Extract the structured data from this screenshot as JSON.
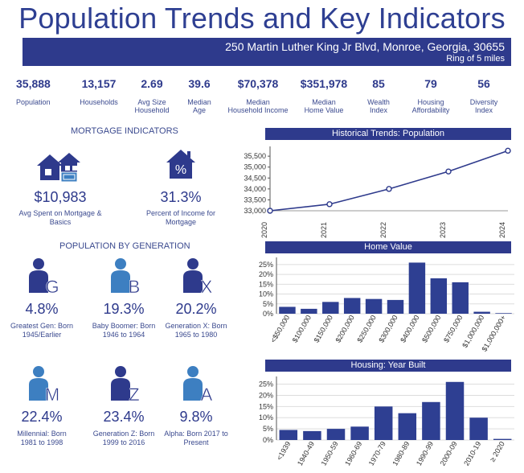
{
  "title": "Population Trends and Key Indicators",
  "banner": {
    "address": "250 Martin Luther King Jr Blvd, Monroe, Georgia, 30655",
    "ring": "Ring of 5 miles"
  },
  "kpis": [
    {
      "value": "35,888",
      "label1": "Population",
      "label2": ""
    },
    {
      "value": "13,157",
      "label1": "Households",
      "label2": ""
    },
    {
      "value": "2.69",
      "label1": "Avg Size",
      "label2": "Household"
    },
    {
      "value": "39.6",
      "label1": "Median",
      "label2": "Age"
    },
    {
      "value": "$70,378",
      "label1": "Median",
      "label2": "Household Income"
    },
    {
      "value": "$351,978",
      "label1": "Median",
      "label2": "Home Value"
    },
    {
      "value": "85",
      "label1": "Wealth",
      "label2": "Index"
    },
    {
      "value": "79",
      "label1": "Housing",
      "label2": "Affordability"
    },
    {
      "value": "56",
      "label1": "Diversity",
      "label2": "Index"
    }
  ],
  "mortgage": {
    "heading": "MORTGAGE INDICATORS",
    "spent_value": "$10,983",
    "spent_label1": "Avg Spent on Mortgage &",
    "spent_label2": "Basics",
    "pct_value": "31.3%",
    "pct_label1": "Percent of Income for",
    "pct_label2": "Mortgage",
    "pct_icon_glyph": "%"
  },
  "generation": {
    "heading": "POPULATION BY GENERATION",
    "items": [
      {
        "letter": "G",
        "value": "4.8%",
        "label1": "Greatest Gen: Born",
        "label2": "1945/Earlier",
        "color": "#2e3a8c"
      },
      {
        "letter": "B",
        "value": "19.3%",
        "label1": "Baby Boomer: Born",
        "label2": "1946 to 1964",
        "color": "#3d7fc1"
      },
      {
        "letter": "X",
        "value": "20.2%",
        "label1": "Generation X: Born",
        "label2": "1965 to 1980",
        "color": "#2e3a8c"
      },
      {
        "letter": "M",
        "value": "22.4%",
        "label1": "Millennial: Born",
        "label2": "1981 to 1998",
        "color": "#3d7fc1"
      },
      {
        "letter": "Z",
        "value": "23.4%",
        "label1": "Generation Z: Born",
        "label2": "1999 to 2016",
        "color": "#2e3a8c"
      },
      {
        "letter": "A",
        "value": "9.8%",
        "label1": "Alpha: Born 2017 to",
        "label2": "Present",
        "color": "#3d7fc1"
      }
    ]
  },
  "colors": {
    "navy": "#2e3a8c",
    "blue": "#3d7fc1",
    "bar": "#2e3f92"
  },
  "chart_data": [
    {
      "type": "line",
      "title": "Historical Trends: Population",
      "x": [
        "2020",
        "2021",
        "2022",
        "2023",
        "2024"
      ],
      "values": [
        33000,
        33300,
        34000,
        34800,
        35750
      ],
      "ylim": [
        33000,
        35500
      ],
      "yticks": [
        "33,000",
        "33,500",
        "34,000",
        "34,500",
        "35,000",
        "35,500"
      ],
      "ytick_values": [
        33000,
        33500,
        34000,
        34500,
        35000,
        35500
      ]
    },
    {
      "type": "bar",
      "title": "Home Value",
      "categories": [
        "<$50,000",
        "$100,000",
        "$150,000",
        "$200,000",
        "$250,000",
        "$300,000",
        "$400,000",
        "$500,000",
        "$750,000",
        "$1,000,000",
        "$1,000,000+"
      ],
      "values": [
        3.5,
        2.5,
        6.0,
        8.0,
        7.5,
        7.0,
        26.0,
        18.0,
        16.0,
        1.0,
        0.3
      ],
      "yticks": [
        "0%",
        "5%",
        "10%",
        "15%",
        "20%",
        "25%"
      ],
      "ytick_values": [
        0,
        5,
        10,
        15,
        20,
        25
      ],
      "ylim": [
        0,
        27
      ]
    },
    {
      "type": "bar",
      "title": "Housing: Year Built",
      "categories": [
        "<1939",
        "1940-49",
        "1950-59",
        "1960-69",
        "1970-79",
        "1980-89",
        "1990-99",
        "2000-09",
        "2010-19",
        "≥ 2020"
      ],
      "values": [
        4.5,
        4.0,
        5.0,
        6.0,
        15.0,
        12.0,
        17.0,
        26.0,
        10.0,
        0.5
      ],
      "yticks": [
        "0%",
        "5%",
        "10%",
        "15%",
        "20%",
        "25%"
      ],
      "ytick_values": [
        0,
        5,
        10,
        15,
        20,
        25
      ],
      "ylim": [
        0,
        27
      ]
    }
  ]
}
